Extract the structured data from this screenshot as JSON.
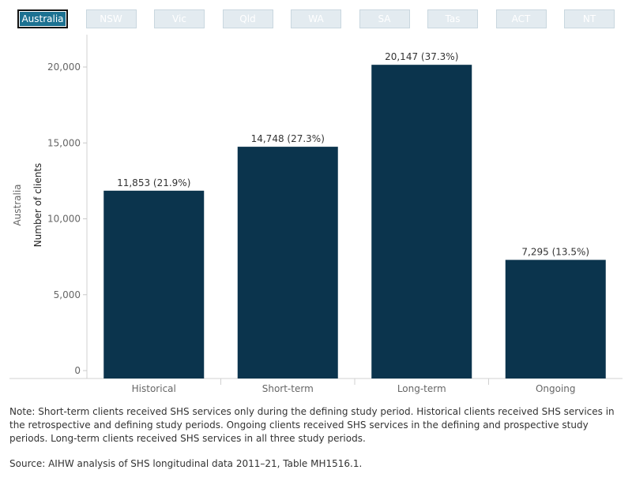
{
  "tabs": [
    {
      "label": "Australia",
      "active": true
    },
    {
      "label": "NSW",
      "active": false
    },
    {
      "label": "Vic",
      "active": false
    },
    {
      "label": "Qld",
      "active": false
    },
    {
      "label": "WA",
      "active": false
    },
    {
      "label": "SA",
      "active": false
    },
    {
      "label": "Tas",
      "active": false
    },
    {
      "label": "ACT",
      "active": false
    },
    {
      "label": "NT",
      "active": false
    }
  ],
  "colors": {
    "bar": "#0b344d",
    "tab_active": "#1c7191",
    "tab_inactive": "#e3ebf0"
  },
  "chart_data": {
    "type": "bar",
    "categories": [
      "Historical",
      "Short-term",
      "Long-term",
      "Ongoing"
    ],
    "values": [
      11853,
      14748,
      20147,
      7295
    ],
    "data_labels": [
      "11,853 (21.9%)",
      "14,748 (27.3%)",
      "20,147 (37.3%)",
      "7,295 (13.5%)"
    ],
    "ylabel": "Number of clients",
    "row_label": "Australia",
    "yticks": [
      0,
      5000,
      10000,
      15000,
      20000
    ],
    "ytick_labels": [
      "0",
      "5,000",
      "10,000",
      "15,000",
      "20,000"
    ],
    "ylim": [
      0,
      22000
    ],
    "grid": false
  },
  "note": "Note: Short-term clients received SHS services only during the defining study period. Historical clients received SHS services in the retrospective and defining study periods. Ongoing clients received SHS services in the defining and prospective study periods. Long-term clients received SHS services in all three study periods.",
  "source": "Source: AIHW analysis of SHS longitudinal data 2011–21, Table MH1516.1."
}
